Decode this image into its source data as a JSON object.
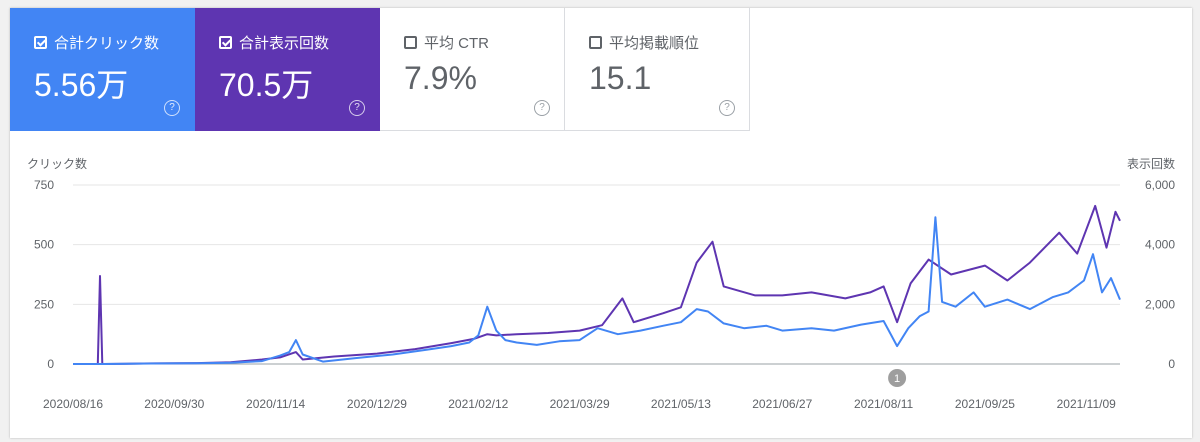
{
  "metrics": [
    {
      "label": "合計クリック数",
      "value": "5.56万",
      "checked": true,
      "color": "#4285f4"
    },
    {
      "label": "合計表示回数",
      "value": "70.5万",
      "checked": true,
      "color": "#5e35b1"
    },
    {
      "label": "平均 CTR",
      "value": "7.9%",
      "checked": false,
      "color": "#ffffff"
    },
    {
      "label": "平均掲載順位",
      "value": "15.1",
      "checked": false,
      "color": "#ffffff"
    }
  ],
  "help_glyph": "?",
  "annotation_label": "1",
  "chart_data": {
    "type": "line",
    "left_axis_label": "クリック数",
    "right_axis_label": "表示回数",
    "y_left": {
      "range": [
        0,
        750
      ],
      "ticks": [
        0,
        250,
        500,
        750
      ],
      "tick_labels": [
        "0",
        "250",
        "500",
        "750"
      ]
    },
    "y_right": {
      "range": [
        0,
        6000
      ],
      "ticks": [
        0,
        2000,
        4000,
        6000
      ],
      "tick_labels": [
        "0",
        "2,000",
        "4,000",
        "6,000"
      ]
    },
    "x_start": "2020/08/16",
    "x_end": "2021/11/24",
    "x_tick_labels": [
      "2020/08/16",
      "2020/09/30",
      "2020/11/14",
      "2020/12/29",
      "2021/02/12",
      "2021/03/29",
      "2021/05/13",
      "2021/06/27",
      "2021/08/11",
      "2021/09/25",
      "2021/11/09"
    ],
    "annotation_date": "2021/08/17",
    "grid": true,
    "series": [
      {
        "name": "合計クリック数",
        "axis": "left",
        "color": "#4285f4",
        "points": [
          [
            "2020/08/16",
            0
          ],
          [
            "2020/08/30",
            0
          ],
          [
            "2020/09/20",
            2
          ],
          [
            "2020/10/10",
            3
          ],
          [
            "2020/10/25",
            5
          ],
          [
            "2020/11/08",
            12
          ],
          [
            "2020/11/16",
            35
          ],
          [
            "2020/11/20",
            50
          ],
          [
            "2020/11/23",
            100
          ],
          [
            "2020/11/26",
            40
          ],
          [
            "2020/12/05",
            10
          ],
          [
            "2020/12/20",
            25
          ],
          [
            "2021/01/05",
            40
          ],
          [
            "2021/01/20",
            60
          ],
          [
            "2021/01/31",
            75
          ],
          [
            "2021/02/08",
            90
          ],
          [
            "2021/02/12",
            120
          ],
          [
            "2021/02/16",
            240
          ],
          [
            "2021/02/20",
            140
          ],
          [
            "2021/02/24",
            100
          ],
          [
            "2021/03/01",
            90
          ],
          [
            "2021/03/10",
            80
          ],
          [
            "2021/03/20",
            95
          ],
          [
            "2021/03/29",
            100
          ],
          [
            "2021/04/06",
            150
          ],
          [
            "2021/04/15",
            125
          ],
          [
            "2021/04/25",
            140
          ],
          [
            "2021/05/05",
            160
          ],
          [
            "2021/05/13",
            175
          ],
          [
            "2021/05/20",
            230
          ],
          [
            "2021/05/25",
            220
          ],
          [
            "2021/06/01",
            170
          ],
          [
            "2021/06/10",
            150
          ],
          [
            "2021/06/20",
            160
          ],
          [
            "2021/06/27",
            140
          ],
          [
            "2021/07/10",
            150
          ],
          [
            "2021/07/20",
            140
          ],
          [
            "2021/08/01",
            165
          ],
          [
            "2021/08/11",
            180
          ],
          [
            "2021/08/17",
            75
          ],
          [
            "2021/08/22",
            150
          ],
          [
            "2021/08/27",
            200
          ],
          [
            "2021/08/31",
            220
          ],
          [
            "2021/09/03",
            615
          ],
          [
            "2021/09/06",
            260
          ],
          [
            "2021/09/12",
            240
          ],
          [
            "2021/09/20",
            300
          ],
          [
            "2021/09/25",
            240
          ],
          [
            "2021/10/05",
            270
          ],
          [
            "2021/10/15",
            230
          ],
          [
            "2021/10/25",
            280
          ],
          [
            "2021/11/01",
            300
          ],
          [
            "2021/11/08",
            350
          ],
          [
            "2021/11/12",
            460
          ],
          [
            "2021/11/16",
            300
          ],
          [
            "2021/11/20",
            360
          ],
          [
            "2021/11/24",
            270
          ]
        ]
      },
      {
        "name": "合計表示回数",
        "axis": "right",
        "color": "#5e35b1",
        "points": [
          [
            "2020/08/16",
            0
          ],
          [
            "2020/08/27",
            0
          ],
          [
            "2020/08/28",
            2950
          ],
          [
            "2020/08/29",
            0
          ],
          [
            "2020/09/20",
            20
          ],
          [
            "2020/10/10",
            30
          ],
          [
            "2020/10/25",
            60
          ],
          [
            "2020/11/08",
            150
          ],
          [
            "2020/11/16",
            220
          ],
          [
            "2020/11/23",
            400
          ],
          [
            "2020/11/26",
            150
          ],
          [
            "2020/12/10",
            250
          ],
          [
            "2020/12/29",
            350
          ],
          [
            "2021/01/15",
            500
          ],
          [
            "2021/01/31",
            700
          ],
          [
            "2021/02/10",
            840
          ],
          [
            "2021/02/16",
            1000
          ],
          [
            "2021/02/20",
            960
          ],
          [
            "2021/03/01",
            1000
          ],
          [
            "2021/03/15",
            1040
          ],
          [
            "2021/03/29",
            1120
          ],
          [
            "2021/04/08",
            1300
          ],
          [
            "2021/04/17",
            2200
          ],
          [
            "2021/04/22",
            1400
          ],
          [
            "2021/05/05",
            1700
          ],
          [
            "2021/05/13",
            1900
          ],
          [
            "2021/05/20",
            3400
          ],
          [
            "2021/05/27",
            4100
          ],
          [
            "2021/06/01",
            2600
          ],
          [
            "2021/06/15",
            2300
          ],
          [
            "2021/06/27",
            2300
          ],
          [
            "2021/07/10",
            2400
          ],
          [
            "2021/07/25",
            2200
          ],
          [
            "2021/08/05",
            2400
          ],
          [
            "2021/08/11",
            2600
          ],
          [
            "2021/08/17",
            1400
          ],
          [
            "2021/08/23",
            2700
          ],
          [
            "2021/08/31",
            3500
          ],
          [
            "2021/09/10",
            3000
          ],
          [
            "2021/09/25",
            3300
          ],
          [
            "2021/10/05",
            2800
          ],
          [
            "2021/10/15",
            3400
          ],
          [
            "2021/10/28",
            4400
          ],
          [
            "2021/11/05",
            3700
          ],
          [
            "2021/11/09",
            4500
          ],
          [
            "2021/11/13",
            5300
          ],
          [
            "2021/11/18",
            3900
          ],
          [
            "2021/11/22",
            5100
          ],
          [
            "2021/11/24",
            4800
          ]
        ]
      }
    ]
  }
}
